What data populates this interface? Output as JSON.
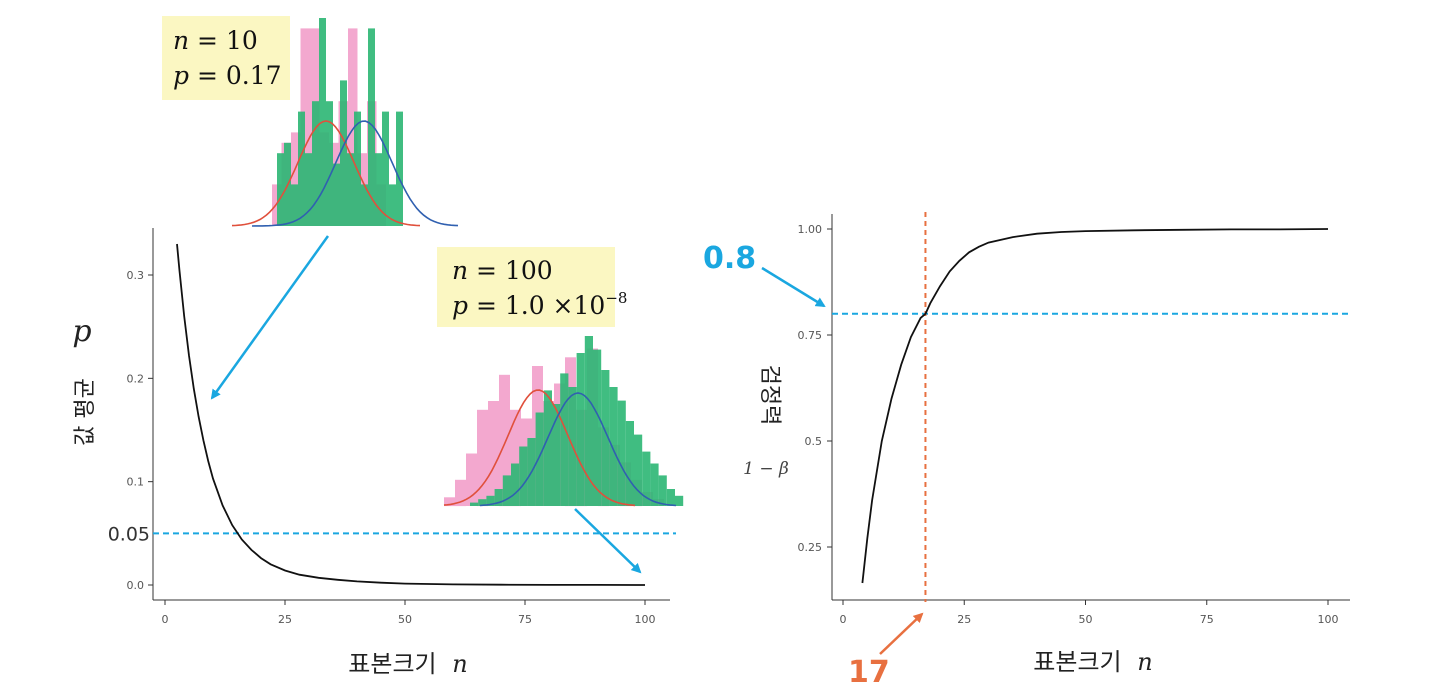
{
  "colors": {
    "pink": "#f3a8cf",
    "green": "#2bb673",
    "red_curve": "#e0503c",
    "blue_curve": "#3060b0",
    "cyan": "#1aa7e0",
    "orange": "#e87040",
    "annot_bg": "#fbf7c2",
    "line": "#111111"
  },
  "chart_data": [
    {
      "type": "line",
      "xlabel": "표본크기",
      "xlabel_var": "n",
      "ylabel_var": "p",
      "ylabel": "값 평균",
      "xlim": [
        0,
        100
      ],
      "ylim": [
        0,
        0.34
      ],
      "xticks": [
        "0",
        "25",
        "50",
        "75",
        "100"
      ],
      "yticks": [
        "0.0",
        "0.1",
        "0.2",
        "0.3"
      ],
      "series": [
        {
          "x": [
            2.5,
            3,
            4,
            5,
            6,
            7,
            8,
            9,
            10,
            12,
            14,
            16,
            18,
            20,
            22,
            25,
            28,
            32,
            36,
            40,
            45,
            50,
            60,
            70,
            80,
            90,
            100
          ],
          "y": [
            0.33,
            0.305,
            0.26,
            0.222,
            0.19,
            0.163,
            0.14,
            0.12,
            0.103,
            0.077,
            0.058,
            0.044,
            0.034,
            0.026,
            0.02,
            0.014,
            0.01,
            0.007,
            0.005,
            0.0035,
            0.0022,
            0.0014,
            0.0006,
            0.0003,
            0.0001,
            5e-05,
            1e-05
          ]
        }
      ],
      "hline": {
        "y": 0.05,
        "label": "0.05"
      },
      "annotations": [
        {
          "n_label": "n",
          "n_text": " = 10",
          "p_label": "p",
          "p_text": " = 0.17",
          "points_to_x": 10
        },
        {
          "n_label": "n",
          "n_text": " = 100",
          "p_label": "p",
          "p_text": " = 1.0 ×10",
          "p_exp": "−8",
          "points_to_x": 100
        }
      ]
    },
    {
      "type": "line",
      "xlabel": "표본크기",
      "xlabel_var": "n",
      "ylabel": "검정력",
      "ylabel_sub": "1 − β",
      "xlim": [
        0,
        100
      ],
      "ylim": [
        0.12,
        1.03
      ],
      "xticks": [
        "0",
        "25",
        "50",
        "75",
        "100"
      ],
      "yticks": [
        "0.25",
        "0.5",
        "0.75",
        "1.00"
      ],
      "series": [
        {
          "x": [
            4,
            5,
            6,
            8,
            10,
            12,
            14,
            16,
            17,
            18,
            20,
            22,
            24,
            26,
            28,
            30,
            35,
            40,
            45,
            50,
            60,
            70,
            80,
            90,
            100
          ],
          "y": [
            0.165,
            0.27,
            0.36,
            0.5,
            0.6,
            0.68,
            0.745,
            0.79,
            0.8,
            0.825,
            0.865,
            0.9,
            0.925,
            0.945,
            0.958,
            0.968,
            0.981,
            0.989,
            0.993,
            0.995,
            0.997,
            0.998,
            0.999,
            0.999,
            1.0
          ]
        }
      ],
      "hline": {
        "y": 0.8,
        "label": "0.8"
      },
      "vline": {
        "x": 17,
        "label": "17"
      }
    }
  ],
  "histograms": [
    {
      "n": 10,
      "pink": [
        0.2,
        0.4,
        0.45,
        0.95,
        0.95,
        0.45,
        0.4,
        0.6,
        0.95,
        0.35,
        0.6,
        0.2
      ],
      "green": [
        0,
        0.35,
        0.4,
        0.2,
        0.55,
        0.35,
        0.6,
        1.0,
        0.6,
        0.3,
        0.7,
        0.35,
        0.55,
        0.2,
        0.95,
        0.35,
        0.55,
        0.2,
        0.55,
        0
      ]
    },
    {
      "n": 100,
      "pink": [
        0.05,
        0.15,
        0.3,
        0.55,
        0.6,
        0.75,
        0.55,
        0.5,
        0.8,
        0.6,
        0.7,
        0.85,
        0.55,
        0.9,
        0.45,
        0.35,
        0.25,
        0.15,
        0.08,
        0.04
      ],
      "green": [
        0.02,
        0.04,
        0.06,
        0.1,
        0.18,
        0.25,
        0.35,
        0.4,
        0.55,
        0.68,
        0.6,
        0.78,
        0.7,
        0.9,
        1.0,
        0.92,
        0.8,
        0.7,
        0.62,
        0.5,
        0.42,
        0.32,
        0.25,
        0.18,
        0.1,
        0.06
      ]
    }
  ]
}
